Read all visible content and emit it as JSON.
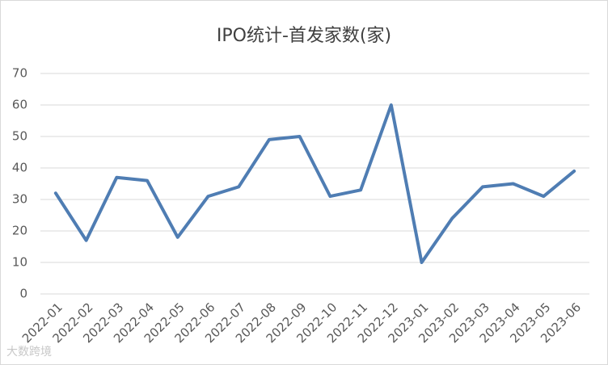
{
  "chart_data": {
    "type": "line",
    "title": "IPO统计-首发家数(家)",
    "categories": [
      "2022-01",
      "2022-02",
      "2022-03",
      "2022-04",
      "2022-05",
      "2022-06",
      "2022-07",
      "2022-08",
      "2022-09",
      "2022-10",
      "2022-11",
      "2022-12",
      "2023-01",
      "2023-02",
      "2023-03",
      "2023-04",
      "2023-05",
      "2023-06"
    ],
    "values": [
      32,
      17,
      37,
      36,
      18,
      31,
      34,
      49,
      50,
      31,
      33,
      60,
      10,
      24,
      34,
      35,
      31,
      39
    ],
    "color": "#4f7db3",
    "ylim": [
      0,
      70
    ],
    "yticks": [
      0,
      10,
      20,
      30,
      40,
      50,
      60,
      70
    ],
    "grid": true,
    "watermark": "大数跨境"
  }
}
